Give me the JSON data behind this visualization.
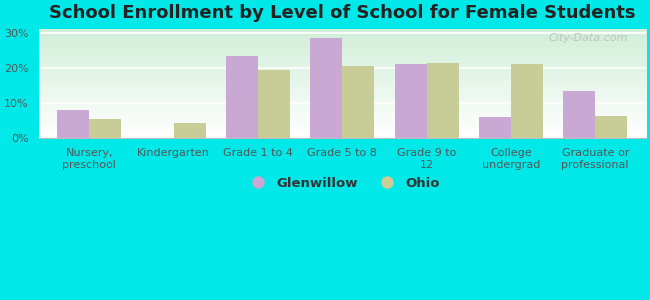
{
  "title": "School Enrollment by Level of School for Female Students",
  "categories": [
    "Nursery,\npreschool",
    "Kindergarten",
    "Grade 1 to 4",
    "Grade 5 to 8",
    "Grade 9 to\n12",
    "College\nundergrad",
    "Graduate or\nprofessional"
  ],
  "glenwillow": [
    8.0,
    0.0,
    23.5,
    28.5,
    21.0,
    6.0,
    13.5
  ],
  "ohio": [
    5.5,
    4.5,
    19.5,
    20.5,
    21.5,
    21.0,
    6.5
  ],
  "glenwillow_color": "#c9a8d4",
  "ohio_color": "#c8cc96",
  "background_color": "#00e8e8",
  "plot_bg_top": "#d0eed8",
  "plot_bg_bottom": "#ffffff",
  "ylabel_ticks": [
    "0%",
    "10%",
    "20%",
    "30%"
  ],
  "yticks": [
    0,
    10,
    20,
    30
  ],
  "ylim": [
    0,
    31
  ],
  "title_fontsize": 13,
  "tick_fontsize": 8,
  "legend_fontsize": 9.5,
  "bar_width": 0.38,
  "watermark": "City-Data.com"
}
